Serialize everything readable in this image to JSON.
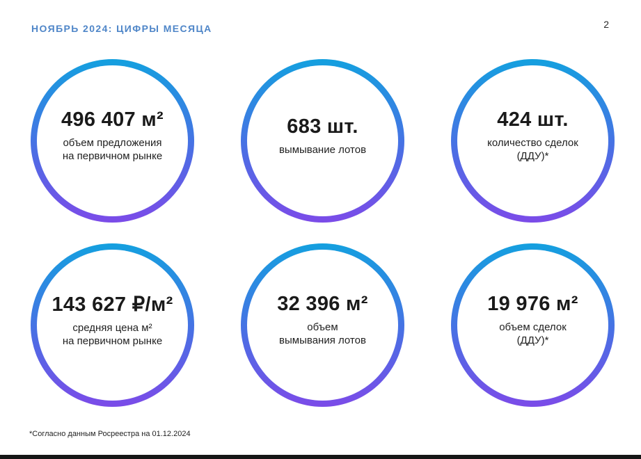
{
  "page": {
    "title": "НОЯБРЬ 2024: ЦИФРЫ МЕСЯЦА",
    "page_number": "2",
    "footnote": "*Согласно данным Росреестра на 01.12.2024"
  },
  "colors": {
    "title_blue": "#4F86C8",
    "ring_gradient_top": "#14A0DF",
    "ring_gradient_bottom": "#7B4BE8",
    "text_dark": "#1A1A1A",
    "bottom_bar": "#161616"
  },
  "stats": [
    {
      "value": "496 407 м²",
      "label": "объем предложения\nна первичном рынке"
    },
    {
      "value": "683 шт.",
      "label": "вымывание лотов"
    },
    {
      "value": "424 шт.",
      "label": "количество сделок\n(ДДУ)*"
    },
    {
      "value": "143 627 ₽/м²",
      "label": "средняя цена м²\nна первичном рынке"
    },
    {
      "value": "32 396 м²",
      "label": "объем\nвымывания лотов"
    },
    {
      "value": "19 976 м²",
      "label": "объем сделок\n(ДДУ)*"
    }
  ]
}
